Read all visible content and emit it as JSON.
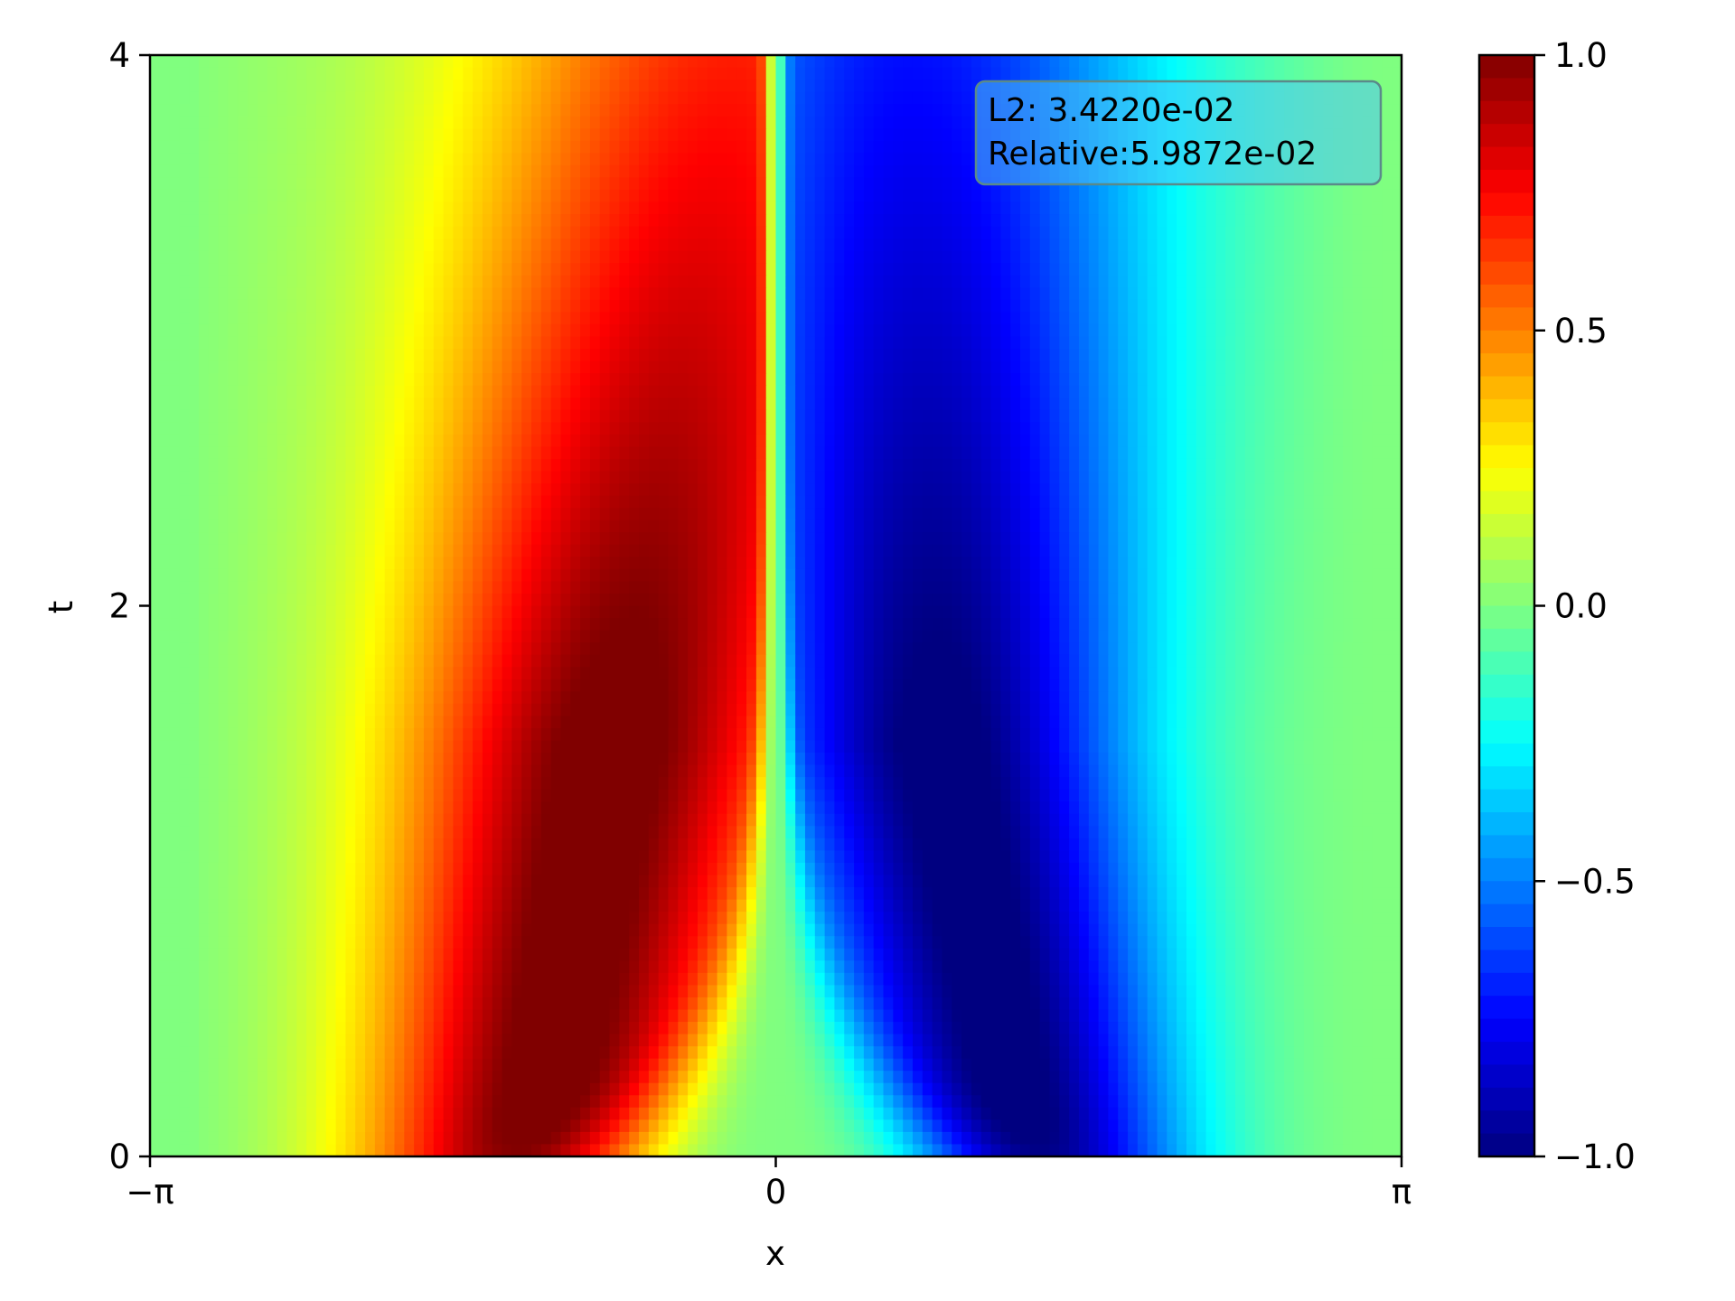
{
  "chart_data": {
    "type": "heatmap",
    "title": "",
    "xlabel": "x",
    "ylabel": "t",
    "xlim": [
      -3.14159,
      3.14159
    ],
    "ylim": [
      0,
      4
    ],
    "x_ticks": [
      {
        "value": -3.14159,
        "label": "−π"
      },
      {
        "value": 0,
        "label": "0"
      },
      {
        "value": 3.14159,
        "label": "π"
      }
    ],
    "y_ticks": [
      {
        "value": 0,
        "label": "0"
      },
      {
        "value": 2,
        "label": "2"
      },
      {
        "value": 4,
        "label": "4"
      }
    ],
    "colormap": "jet",
    "colorbar": {
      "range": [
        -1.0,
        1.0
      ],
      "ticks": [
        {
          "value": 1.0,
          "label": "1.0"
        },
        {
          "value": 0.5,
          "label": "0.5"
        },
        {
          "value": 0.0,
          "label": "0.0"
        },
        {
          "value": -0.5,
          "label": "−0.5"
        },
        {
          "value": -1.0,
          "label": "−1.0"
        }
      ]
    },
    "annotation": {
      "line1": "L2: 3.4220e-02",
      "line2": "Relative:5.9872e-02",
      "box_color": "#4fc3f7"
    },
    "grid": false
  }
}
